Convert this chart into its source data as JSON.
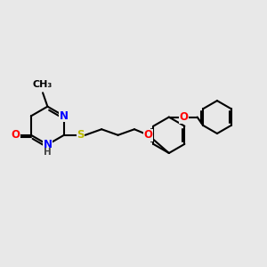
{
  "bg_color": "#e8e8e8",
  "bond_color": "#000000",
  "bond_lw": 1.5,
  "atom_colors": {
    "N": "#0000ff",
    "O": "#ff0000",
    "S": "#bbbb00",
    "H": "#444444",
    "C": "#000000"
  },
  "fs": 8.5,
  "figsize": [
    3.0,
    3.0
  ],
  "dpi": 100
}
